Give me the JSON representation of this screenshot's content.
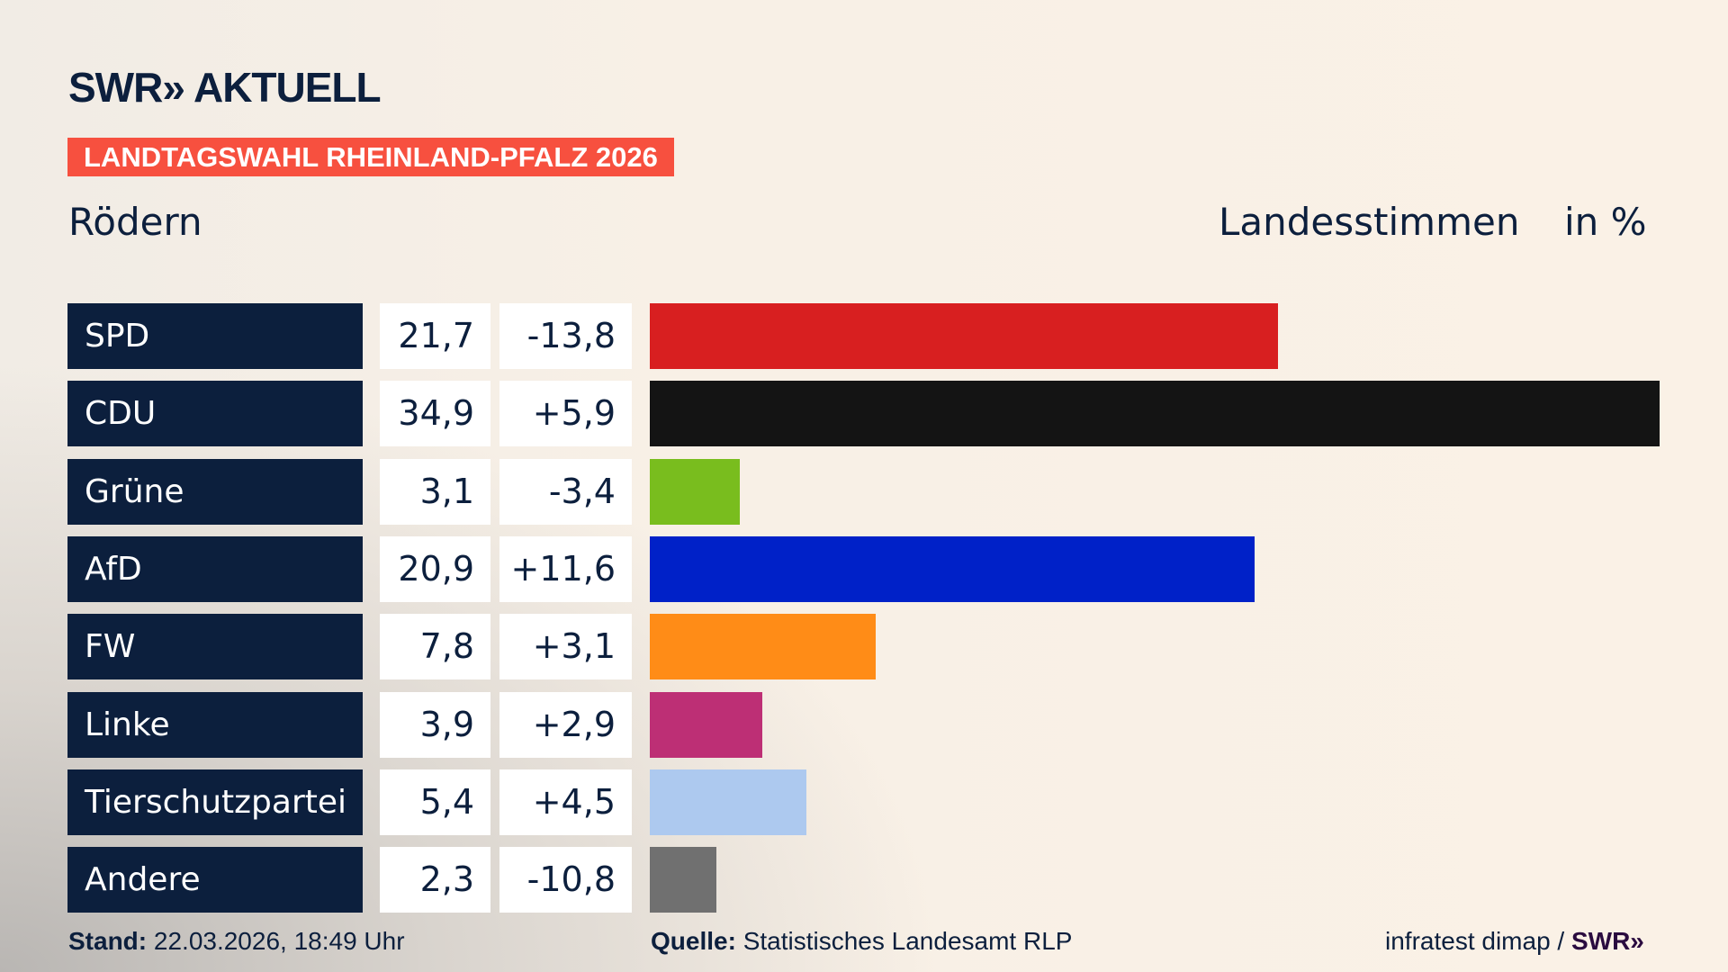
{
  "header": {
    "logo": "SWR» AKTUELL",
    "banner": "LANDTAGSWAHL RHEINLAND-PFALZ 2026",
    "location": "Rödern",
    "measure": "Landesstimmen",
    "unit": "in %"
  },
  "chart_data": {
    "type": "bar",
    "orientation": "horizontal",
    "categories": [
      "SPD",
      "CDU",
      "Grüne",
      "AfD",
      "FW",
      "Linke",
      "Tierschutzpartei",
      "Andere"
    ],
    "series": [
      {
        "values": [
          21.7,
          34.9,
          3.1,
          20.9,
          7.8,
          3.9,
          5.4,
          2.3
        ]
      }
    ],
    "value_labels": [
      "21,7",
      "34,9",
      "3,1",
      "20,9",
      "7,8",
      "3,9",
      "5,4",
      "2,3"
    ],
    "diff_labels": [
      "-13,8",
      "+5,9",
      "-3,4",
      "+11,6",
      "+3,1",
      "+2,9",
      "+4,5",
      "-10,8"
    ],
    "colors": [
      "#d81f20",
      "#141414",
      "#79bd1e",
      "#0021c8",
      "#ff8c17",
      "#bd2f75",
      "#adc9ef",
      "#707070"
    ],
    "xlim": [
      0,
      34.9
    ]
  },
  "footer": {
    "stand_label": "Stand:",
    "stand": "22.03.2026, 18:49 Uhr",
    "source_label": "Quelle:",
    "source": "Statistisches Landesamt RLP",
    "credit": "infratest dimap /",
    "credit_logo": "SWR»"
  }
}
